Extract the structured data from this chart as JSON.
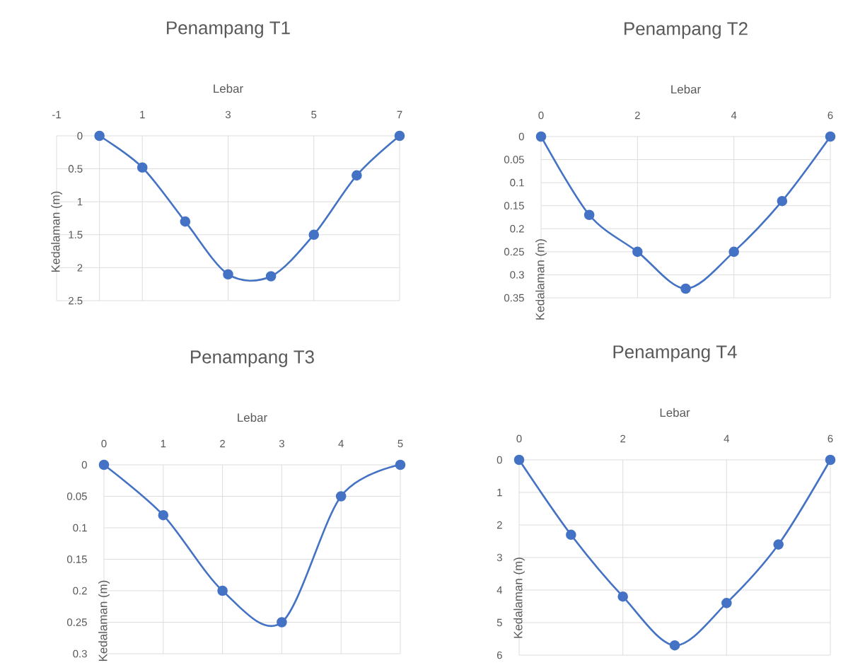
{
  "chart_data": [
    {
      "type": "line",
      "title": "Penampang T1",
      "xlabel": "Lebar",
      "ylabel": "Kedalaman (m)",
      "x": [
        0,
        1,
        2,
        3,
        4,
        5,
        6,
        7
      ],
      "series": [
        {
          "color": "#4472c4",
          "values": [
            0,
            0.48,
            1.3,
            2.1,
            2.13,
            1.5,
            0.6,
            0
          ]
        }
      ],
      "xlim": [
        -1,
        7
      ],
      "xticks": [
        -1,
        1,
        3,
        5,
        7
      ],
      "ylim": [
        2.5,
        0
      ],
      "yticks": [
        0,
        0.5,
        1,
        1.5,
        2,
        2.5
      ],
      "grid": true,
      "marker": "circle",
      "line_style": "solid"
    },
    {
      "type": "line",
      "title": "Penampang T2",
      "xlabel": "Lebar",
      "ylabel": "Kedalaman (m)",
      "x": [
        0,
        1,
        2,
        3,
        4,
        5,
        6
      ],
      "series": [
        {
          "color": "#4472c4",
          "values": [
            0,
            0.17,
            0.25,
            0.33,
            0.25,
            0.14,
            0
          ]
        }
      ],
      "xlim": [
        0,
        6
      ],
      "xticks": [
        0,
        2,
        4,
        6
      ],
      "ylim": [
        0.35,
        0
      ],
      "yticks": [
        0,
        0.05,
        0.1,
        0.15,
        0.2,
        0.25,
        0.3,
        0.35
      ],
      "grid": true,
      "marker": "circle",
      "line_style": "solid"
    },
    {
      "type": "line",
      "title": "Penampang T3",
      "xlabel": "Lebar",
      "ylabel": "Kedalaman (m)",
      "x": [
        0,
        1,
        2,
        3,
        4,
        5
      ],
      "series": [
        {
          "color": "#4472c4",
          "values": [
            0,
            0.08,
            0.2,
            0.25,
            0.05,
            0
          ]
        }
      ],
      "xlim": [
        0,
        5
      ],
      "xticks": [
        0,
        1,
        2,
        3,
        4,
        5
      ],
      "ylim": [
        0.3,
        0
      ],
      "yticks": [
        0,
        0.05,
        0.1,
        0.15,
        0.2,
        0.25,
        0.3
      ],
      "grid": true,
      "marker": "circle",
      "line_style": "solid"
    },
    {
      "type": "line",
      "title": "Penampang T4",
      "xlabel": "Lebar",
      "ylabel": "Kedalaman (m)",
      "x": [
        0,
        1,
        2,
        3,
        4,
        5,
        6
      ],
      "series": [
        {
          "color": "#4472c4",
          "values": [
            0,
            2.3,
            4.2,
            5.7,
            4.4,
            2.6,
            0
          ]
        }
      ],
      "xlim": [
        0,
        6
      ],
      "xticks": [
        0,
        2,
        4,
        6
      ],
      "ylim": [
        6,
        0
      ],
      "yticks": [
        0,
        1,
        2,
        3,
        4,
        5,
        6
      ],
      "grid": true,
      "marker": "circle",
      "line_style": "solid"
    }
  ]
}
